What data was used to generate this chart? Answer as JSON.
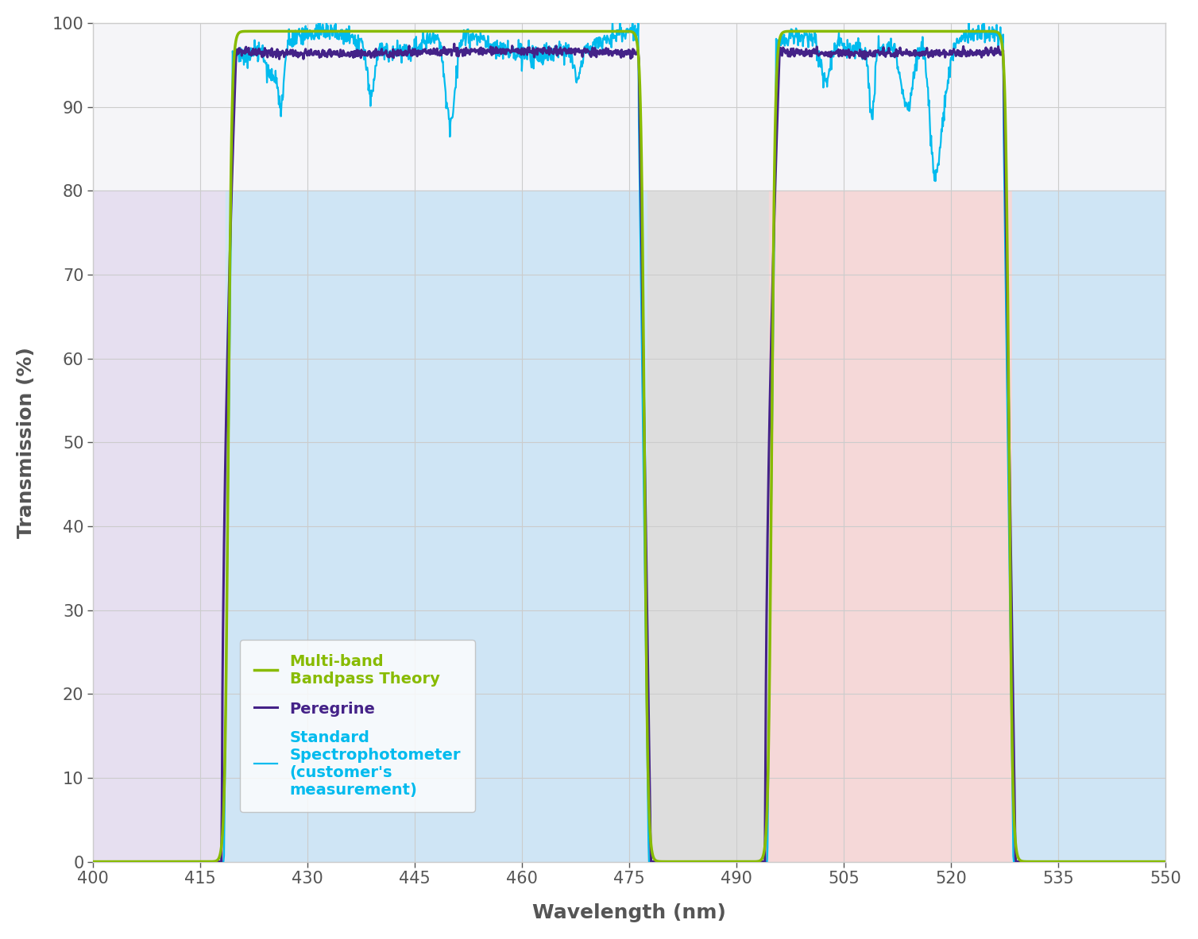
{
  "xlim": [
    400,
    550
  ],
  "ylim": [
    0,
    100
  ],
  "xticks": [
    400,
    415,
    430,
    445,
    460,
    475,
    490,
    505,
    520,
    535,
    550
  ],
  "yticks": [
    0,
    10,
    20,
    30,
    40,
    50,
    60,
    70,
    80,
    90,
    100
  ],
  "xlabel": "Wavelength (nm)",
  "ylabel": "Transmission (%)",
  "background_color": "#f5f5f8",
  "grid_color": "#cccccc",
  "band1_pass_start": 418.5,
  "band1_pass_end": 477.5,
  "band2_pass_start": 494.5,
  "band2_pass_end": 528.5,
  "bg_left_color": "#e6dff0",
  "bg_band1_color": "#cfe5f5",
  "bg_notch_color": "#dddddd",
  "bg_band2_color": "#f5d8d8",
  "bg_right_color": "#cfe5f5",
  "bg_height_limit": 80,
  "theory_color": "#88bb00",
  "peregrine_color": "#442288",
  "spectro_color": "#00bbee",
  "axis_label_fontsize": 18,
  "tick_fontsize": 15,
  "legend_fontsize": 14
}
